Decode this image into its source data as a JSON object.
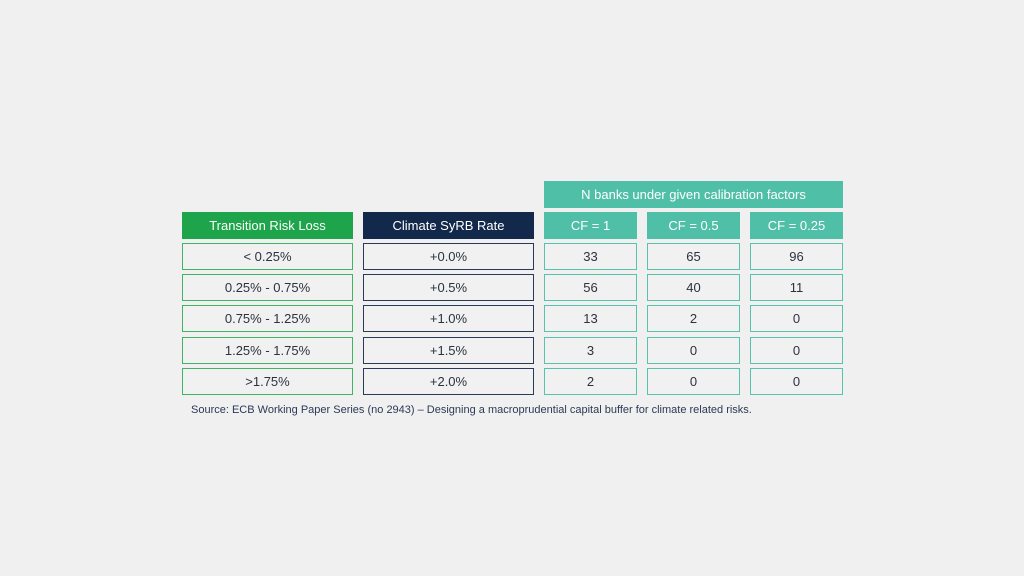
{
  "group_header": "N banks under given calibration factors",
  "headers": {
    "loss": "Transition Risk Loss",
    "rate": "Climate SyRB Rate",
    "cf1": "CF = 1",
    "cf05": "CF = 0.5",
    "cf025": "CF = 0.25"
  },
  "rows": [
    {
      "loss": "< 0.25%",
      "rate": "+0.0%",
      "cf1": "33",
      "cf05": "65",
      "cf025": "96"
    },
    {
      "loss": "0.25% - 0.75%",
      "rate": "+0.5%",
      "cf1": "56",
      "cf05": "40",
      "cf025": "11"
    },
    {
      "loss": "0.75% - 1.25%",
      "rate": "+1.0%",
      "cf1": "13",
      "cf05": "2",
      "cf025": "0"
    },
    {
      "loss": "1.25% - 1.75%",
      "rate": "+1.5%",
      "cf1": "3",
      "cf05": "0",
      "cf025": "0"
    },
    {
      "loss": ">1.75%",
      "rate": "+2.0%",
      "cf1": "2",
      "cf05": "0",
      "cf025": "0"
    }
  ],
  "source": "Source:  ECB Working  Paper Series (no  2943) – Designing  a macroprudential capital buffer for climate related risks.",
  "colors": {
    "background": "#eff0ef",
    "green": "#1ea44a",
    "navy": "#13294b",
    "teal": "#50bfa8"
  }
}
